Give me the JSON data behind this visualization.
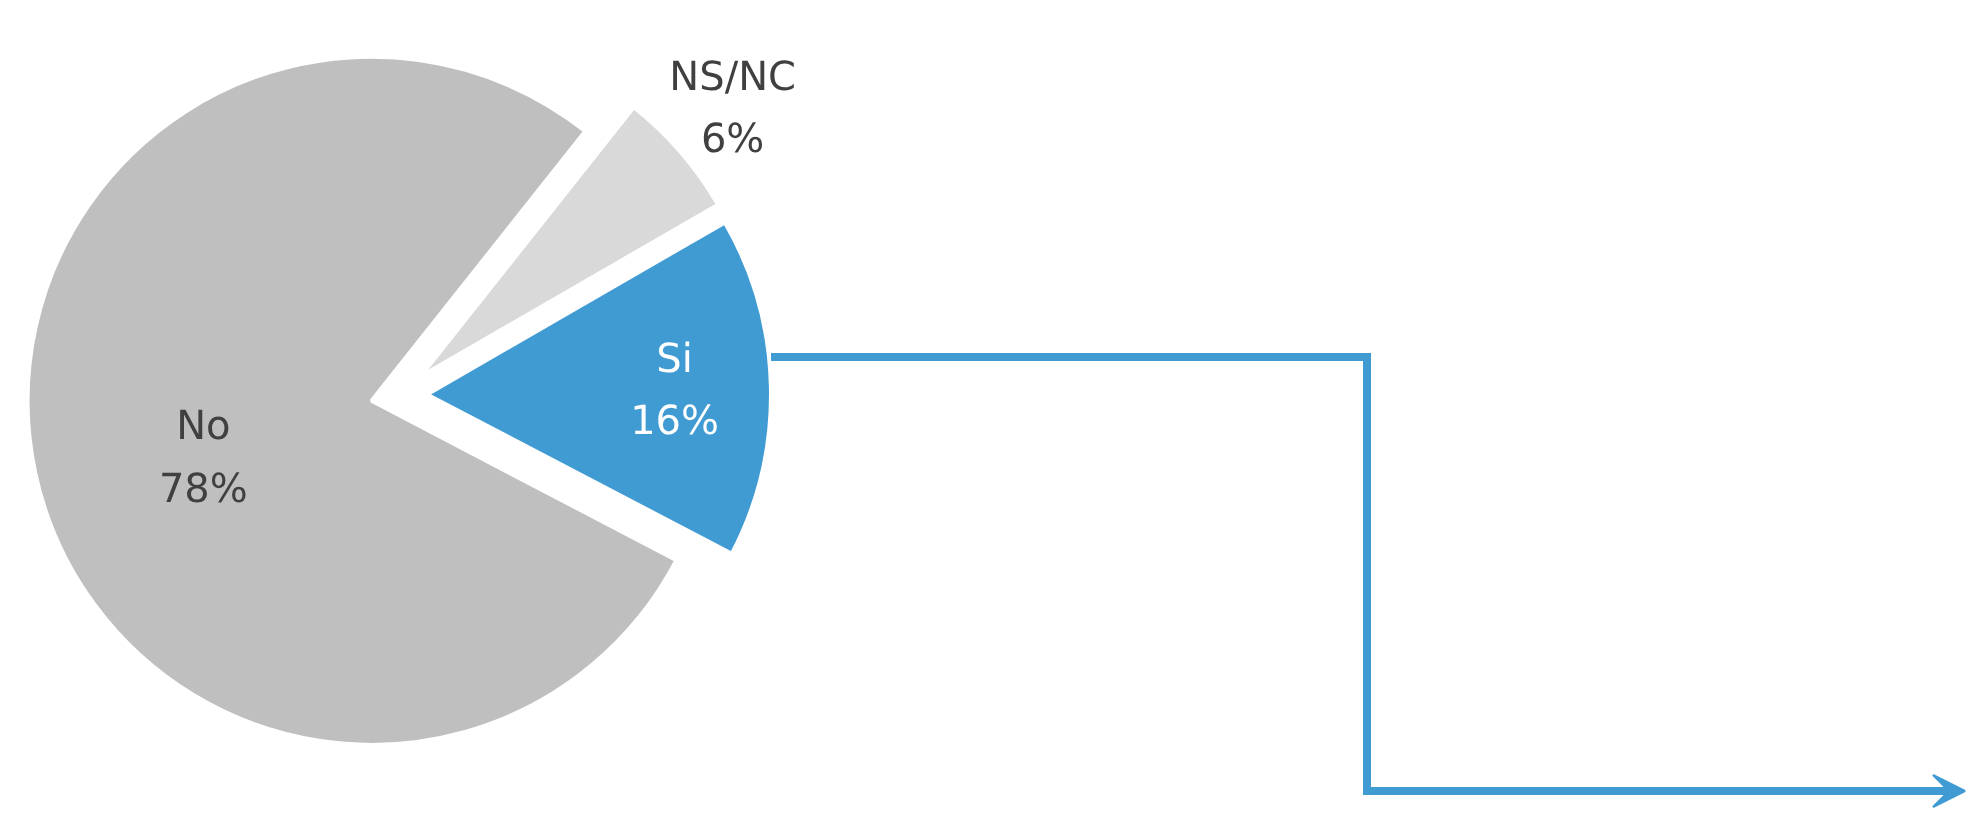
{
  "chart_data": {
    "type": "pie",
    "categories": [
      "Si",
      "NS/NC",
      "No"
    ],
    "values": [
      16,
      6,
      78
    ],
    "value_labels": [
      "16%",
      "6%",
      "78%"
    ],
    "colors": [
      "#419bd3",
      "#d9d9d9",
      "#bfbfbf"
    ]
  }
}
